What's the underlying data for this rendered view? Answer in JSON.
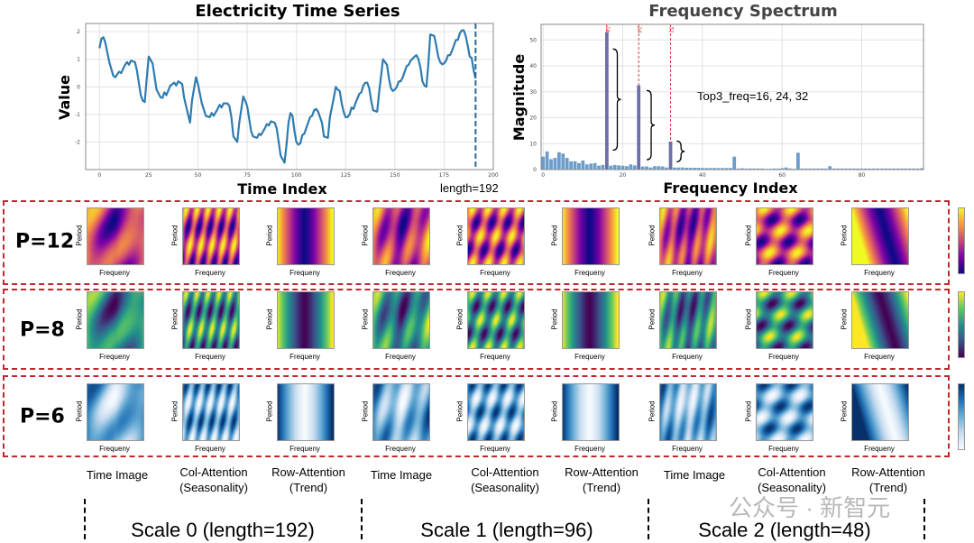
{
  "chart_data": [
    {
      "type": "line",
      "title": "Electricity Time Series",
      "xlabel": "Time Index",
      "ylabel": "Value",
      "xlim": [
        -7,
        200
      ],
      "ylim": [
        -3.0,
        2.3
      ],
      "xticks": [
        0,
        25,
        50,
        75,
        100,
        125,
        150,
        175,
        200
      ],
      "yticks": [
        -2,
        -1,
        0,
        1,
        2
      ],
      "grid": true,
      "line_color": "#2e7bb0",
      "annotation": "length=192",
      "marker_line_x": 191,
      "points": [
        [
          0,
          1.4
        ],
        [
          1,
          1.75
        ],
        [
          2,
          1.8
        ],
        [
          3,
          1.6
        ],
        [
          5,
          0.9
        ],
        [
          7,
          0.4
        ],
        [
          8,
          0.35
        ],
        [
          10,
          0.55
        ],
        [
          11,
          0.5
        ],
        [
          13,
          0.8
        ],
        [
          14,
          0.9
        ],
        [
          15,
          0.8
        ],
        [
          16,
          0.95
        ],
        [
          18,
          0.9
        ],
        [
          19,
          0.6
        ],
        [
          21,
          -0.3
        ],
        [
          22,
          -0.5
        ],
        [
          23,
          -0.55
        ],
        [
          24,
          0.3
        ],
        [
          25,
          1.1
        ],
        [
          27,
          0.85
        ],
        [
          29,
          -0.1
        ],
        [
          31,
          -0.38
        ],
        [
          32,
          -0.4
        ],
        [
          33,
          -0.2
        ],
        [
          34,
          -0.3
        ],
        [
          36,
          0.05
        ],
        [
          38,
          0.15
        ],
        [
          39,
          0.05
        ],
        [
          40,
          0.2
        ],
        [
          42,
          0.1
        ],
        [
          43,
          -0.4
        ],
        [
          45,
          -1.0
        ],
        [
          46,
          -1.3
        ],
        [
          47,
          -0.5
        ],
        [
          49,
          0.35
        ],
        [
          50,
          0.1
        ],
        [
          52,
          -0.6
        ],
        [
          54,
          -1.05
        ],
        [
          56,
          -1.1
        ],
        [
          57,
          -0.95
        ],
        [
          58,
          -1.05
        ],
        [
          60,
          -0.8
        ],
        [
          61,
          -0.65
        ],
        [
          62,
          -0.75
        ],
        [
          63,
          -0.6
        ],
        [
          65,
          -0.6
        ],
        [
          66,
          -0.7
        ],
        [
          67,
          -1.1
        ],
        [
          68,
          -1.8
        ],
        [
          70,
          -2.0
        ],
        [
          71,
          -1.3
        ],
        [
          73,
          -0.35
        ],
        [
          74,
          -0.5
        ],
        [
          75,
          -0.7
        ],
        [
          77,
          -1.6
        ],
        [
          78,
          -1.8
        ],
        [
          80,
          -1.85
        ],
        [
          81,
          -1.7
        ],
        [
          82,
          -1.75
        ],
        [
          84,
          -1.5
        ],
        [
          85,
          -1.35
        ],
        [
          86,
          -1.4
        ],
        [
          87,
          -1.25
        ],
        [
          89,
          -1.3
        ],
        [
          90,
          -1.5
        ],
        [
          91,
          -2.0
        ],
        [
          92,
          -2.5
        ],
        [
          94,
          -2.75
        ],
        [
          95,
          -2.1
        ],
        [
          96,
          -1.3
        ],
        [
          97,
          -0.95
        ],
        [
          98,
          -1.05
        ],
        [
          99,
          -1.6
        ],
        [
          100,
          -2.0
        ],
        [
          101,
          -2.1
        ],
        [
          102,
          -2.05
        ],
        [
          103,
          -1.75
        ],
        [
          104,
          -1.7
        ],
        [
          106,
          -1.3
        ],
        [
          107,
          -1.1
        ],
        [
          108,
          -1.05
        ],
        [
          109,
          -0.85
        ],
        [
          110,
          -0.8
        ],
        [
          111,
          -0.9
        ],
        [
          113,
          -1.3
        ],
        [
          114,
          -1.8
        ],
        [
          116,
          -1.85
        ],
        [
          117,
          -1.1
        ],
        [
          119,
          -0.4
        ],
        [
          120,
          0.0
        ],
        [
          121,
          -0.1
        ],
        [
          122,
          -0.15
        ],
        [
          123,
          -0.6
        ],
        [
          124,
          -0.9
        ],
        [
          125,
          -1.1
        ],
        [
          126,
          -1.1
        ],
        [
          127,
          -1.0
        ],
        [
          128,
          -0.75
        ],
        [
          129,
          -0.8
        ],
        [
          130,
          -0.6
        ],
        [
          132,
          -0.25
        ],
        [
          133,
          -0.2
        ],
        [
          134,
          0.05
        ],
        [
          135,
          0.15
        ],
        [
          136,
          0.15
        ],
        [
          137,
          -0.05
        ],
        [
          138,
          -0.5
        ],
        [
          139,
          -0.85
        ],
        [
          141,
          -0.9
        ],
        [
          142,
          -0.2
        ],
        [
          144,
          1.0
        ],
        [
          145,
          0.9
        ],
        [
          146,
          0.8
        ],
        [
          147,
          0.3
        ],
        [
          148,
          -0.05
        ],
        [
          149,
          -0.15
        ],
        [
          150,
          -0.1
        ],
        [
          151,
          0.0
        ],
        [
          152,
          0.2
        ],
        [
          153,
          0.2
        ],
        [
          154,
          0.35
        ],
        [
          156,
          0.75
        ],
        [
          157,
          0.8
        ],
        [
          158,
          0.95
        ],
        [
          160,
          1.1
        ],
        [
          161,
          1.15
        ],
        [
          162,
          1.0
        ],
        [
          163,
          0.7
        ],
        [
          164,
          0.2
        ],
        [
          165,
          0.05
        ],
        [
          166,
          0.0
        ],
        [
          167,
          0.8
        ],
        [
          168,
          1.9
        ],
        [
          170,
          1.85
        ],
        [
          171,
          1.5
        ],
        [
          172,
          1.1
        ],
        [
          173,
          0.9
        ],
        [
          174,
          0.82
        ],
        [
          175,
          0.85
        ],
        [
          176,
          0.95
        ],
        [
          177,
          1.15
        ],
        [
          178,
          1.15
        ],
        [
          179,
          1.3
        ],
        [
          180,
          1.5
        ],
        [
          181,
          1.7
        ],
        [
          182,
          1.7
        ],
        [
          183,
          1.95
        ],
        [
          184,
          2.05
        ],
        [
          185,
          2.05
        ],
        [
          186,
          1.85
        ],
        [
          187,
          1.5
        ],
        [
          188,
          1.1
        ],
        [
          189,
          1.05
        ],
        [
          190,
          0.6
        ],
        [
          191,
          0.3
        ]
      ]
    },
    {
      "type": "bar",
      "title": "Frequency Spectrum",
      "xlabel": "Frequency Index",
      "ylabel": "Magnitude",
      "xlim": [
        -0.5,
        95.5
      ],
      "ylim": [
        0,
        56
      ],
      "xticks": [
        0,
        20,
        40,
        60,
        80
      ],
      "yticks": [
        0,
        10,
        20,
        30,
        40,
        50
      ],
      "grid": true,
      "bar_color": "#6a9dcb",
      "highlight_color": "#6a6fa8",
      "peak_line_color": "#d93a3a",
      "annotation": "Top3_freq=16, 24, 32",
      "peaks": [
        16,
        24,
        32
      ],
      "peak_labels": [
        "16",
        "24",
        "32"
      ],
      "values": [
        5,
        7,
        4,
        4.5,
        6.7,
        6.2,
        4.5,
        3.2,
        3.2,
        2.5,
        3.5,
        2,
        2.3,
        2.5,
        1.5,
        1.8,
        53,
        1.5,
        1.8,
        1.6,
        1.5,
        1.3,
        2,
        1.6,
        32.5,
        1.2,
        1.2,
        0.8,
        1.3,
        1.3,
        1.2,
        0.8,
        10.8,
        0.8,
        0.8,
        0.8,
        0.7,
        0.7,
        0.7,
        0.7,
        0.6,
        0.6,
        0.6,
        0.6,
        0.6,
        0.6,
        0.6,
        0.6,
        5,
        0.4,
        0.5,
        0.4,
        0.4,
        0.4,
        0.4,
        0.4,
        0.3,
        0.3,
        0.4,
        0.4,
        0.5,
        0.8,
        0.4,
        0.3,
        6.5,
        0.4,
        0.4,
        0.4,
        0.4,
        0.4,
        0.4,
        0.4,
        1.3,
        0.4,
        0.4,
        0.4,
        0.4,
        0.4,
        0.4,
        0.4,
        0.4,
        0.4,
        0.4,
        0.4,
        0.4,
        0.4,
        0.4,
        0.4,
        0.4,
        0.4,
        0.4,
        0.4,
        0.4,
        0.4,
        0.4,
        0.5
      ]
    }
  ],
  "rows": [
    {
      "label": "P=12",
      "color": "#d4687b",
      "colormap": [
        "#0d0887",
        "#7e03a8",
        "#cc4778",
        "#f89540",
        "#f0f921"
      ]
    },
    {
      "label": "P=8",
      "color": "#2a9d86",
      "colormap": [
        "#440154",
        "#3b528b",
        "#21918c",
        "#5ec962",
        "#fde725"
      ]
    },
    {
      "label": "P=6",
      "color": "#2a5e9c",
      "colormap": [
        "#f7fbff",
        "#c6dbef",
        "#6baed6",
        "#2171b5",
        "#08306b"
      ]
    }
  ],
  "panel_axes": {
    "ylabel": "Period",
    "xlabel": "Frequeny"
  },
  "columns": [
    {
      "label": "Time Image",
      "sub": ""
    },
    {
      "label": "Col-Attention",
      "sub": "(Seasonality)"
    },
    {
      "label": "Row-Attention",
      "sub": "(Trend)"
    },
    {
      "label": "Time Image",
      "sub": ""
    },
    {
      "label": "Col-Attention",
      "sub": "(Seasonality)"
    },
    {
      "label": "Row-Attention",
      "sub": "(Trend)"
    },
    {
      "label": "Time Image",
      "sub": ""
    },
    {
      "label": "Col-Attention",
      "sub": "(Seasonality)"
    },
    {
      "label": "Row-Attention",
      "sub": "(Trend)"
    }
  ],
  "scales": [
    "Scale 0 (length=192)",
    "Scale 1 (length=96)",
    "Scale 2 (length=48)"
  ],
  "watermark": "公众号 · 新智元"
}
